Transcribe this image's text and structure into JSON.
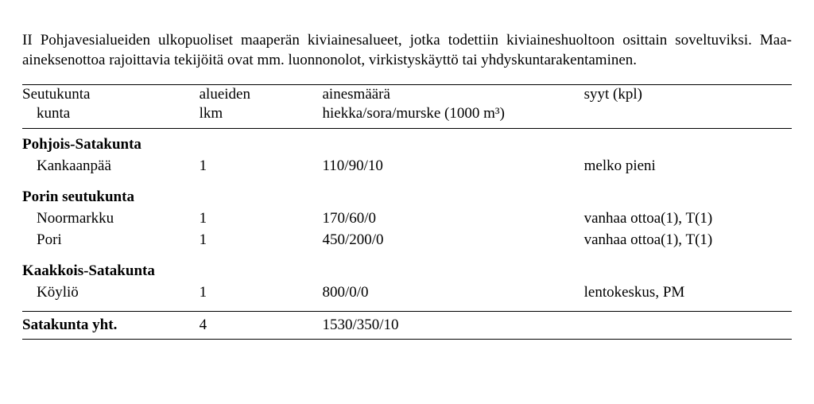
{
  "intro": "II Pohjavesialueiden ulkopuoliset maaperän kiviainesalueet, jotka todettiin kiviaineshuoltoon osittain soveltuviksi. Maa-aineksenottoa rajoittavia tekijöitä ovat mm. luonnonolot, virkistyskäyttö tai yhdyskuntarakentaminen.",
  "header": {
    "col1_line1": "Seutukunta",
    "col1_line2": "kunta",
    "col2_line1": "alueiden",
    "col2_line2": "lkm",
    "col3_line1": "ainesmäärä",
    "col3_line2": "hiekka/sora/murske (1000 m³)",
    "col4_line1": "syyt (kpl)",
    "col4_line2": ""
  },
  "sections": [
    {
      "name": "Pohjois-Satakunta",
      "rows": [
        {
          "kunta": "Kankaanpää",
          "lkm": "1",
          "aines": "110/90/10",
          "syyt": "melko pieni"
        }
      ]
    },
    {
      "name": "Porin seutukunta",
      "rows": [
        {
          "kunta": "Noormarkku",
          "lkm": "1",
          "aines": "170/60/0",
          "syyt": "vanhaa ottoa(1), T(1)"
        },
        {
          "kunta": "Pori",
          "lkm": "1",
          "aines": "450/200/0",
          "syyt": "vanhaa ottoa(1), T(1)"
        }
      ]
    },
    {
      "name": "Kaakkois-Satakunta",
      "rows": [
        {
          "kunta": "Köyliö",
          "lkm": "1",
          "aines": "800/0/0",
          "syyt": "lentokeskus, PM"
        }
      ]
    }
  ],
  "total": {
    "label": "Satakunta yht.",
    "lkm": "4",
    "aines": "1530/350/10",
    "syyt": ""
  }
}
